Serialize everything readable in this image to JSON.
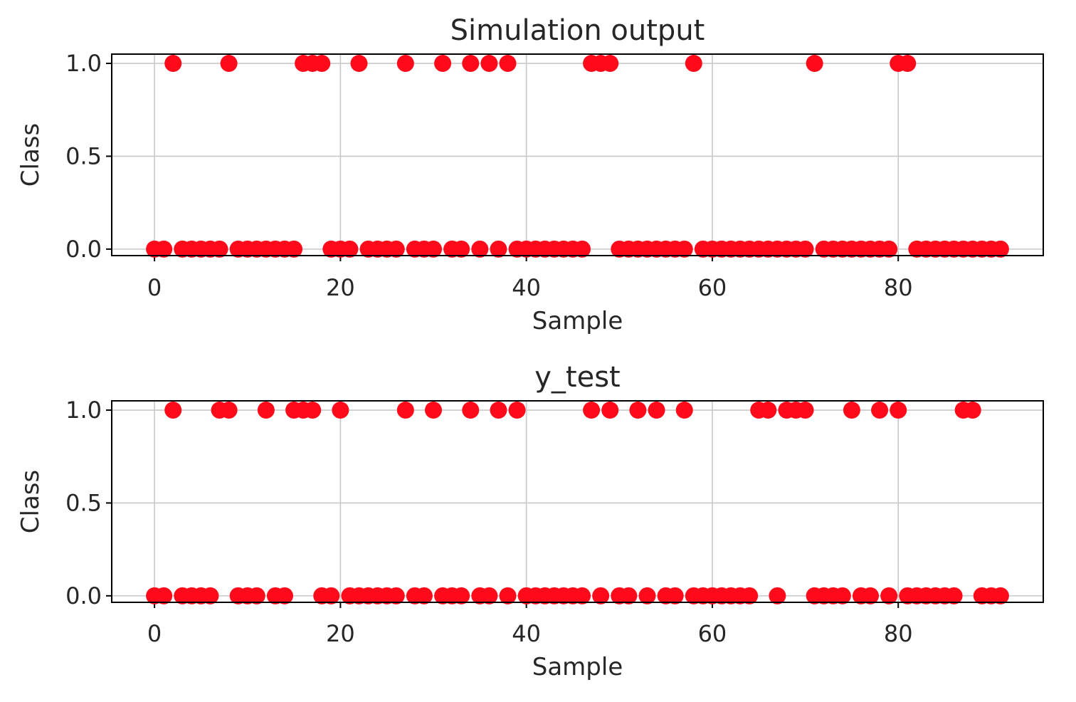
{
  "chart_data": [
    {
      "type": "scatter",
      "title": "Simulation output",
      "xlabel": "Sample",
      "ylabel": "Class",
      "xlim": [
        -4.6,
        95.6
      ],
      "ylim": [
        -0.035,
        1.05
      ],
      "xticks": [
        0,
        20,
        40,
        60,
        80
      ],
      "xtick_labels": [
        "0",
        "20",
        "40",
        "60",
        "80"
      ],
      "yticks": [
        0.0,
        0.5,
        1.0
      ],
      "ytick_labels": [
        "0.0",
        "0.5",
        "1.0"
      ],
      "grid": true,
      "marker_color": "#ff0a1a",
      "x": [
        0,
        1,
        2,
        3,
        4,
        5,
        6,
        7,
        8,
        9,
        10,
        11,
        12,
        13,
        14,
        15,
        16,
        17,
        18,
        19,
        20,
        21,
        22,
        23,
        24,
        25,
        26,
        27,
        28,
        29,
        30,
        31,
        32,
        33,
        34,
        35,
        36,
        37,
        38,
        39,
        40,
        41,
        42,
        43,
        44,
        45,
        46,
        47,
        48,
        49,
        50,
        51,
        52,
        53,
        54,
        55,
        56,
        57,
        58,
        59,
        60,
        61,
        62,
        63,
        64,
        65,
        66,
        67,
        68,
        69,
        70,
        71,
        72,
        73,
        74,
        75,
        76,
        77,
        78,
        79,
        80,
        81,
        82,
        83,
        84,
        85,
        86,
        87,
        88,
        89,
        90,
        91
      ],
      "y": [
        0,
        0,
        1,
        0,
        0,
        0,
        0,
        0,
        1,
        0,
        0,
        0,
        0,
        0,
        0,
        0,
        1,
        1,
        1,
        0,
        0,
        0,
        1,
        0,
        0,
        0,
        0,
        1,
        0,
        0,
        0,
        1,
        0,
        0,
        1,
        0,
        1,
        0,
        1,
        0,
        0,
        0,
        0,
        0,
        0,
        0,
        0,
        1,
        1,
        1,
        0,
        0,
        0,
        0,
        0,
        0,
        0,
        0,
        1,
        0,
        0,
        0,
        0,
        0,
        0,
        0,
        0,
        0,
        0,
        0,
        0,
        1,
        0,
        0,
        0,
        0,
        0,
        0,
        0,
        0,
        1,
        1,
        0,
        0,
        0,
        0,
        0,
        0,
        0,
        0,
        0,
        0
      ]
    },
    {
      "type": "scatter",
      "title": "y_test",
      "xlabel": "Sample",
      "ylabel": "Class",
      "xlim": [
        -4.6,
        95.6
      ],
      "ylim": [
        -0.035,
        1.05
      ],
      "xticks": [
        0,
        20,
        40,
        60,
        80
      ],
      "xtick_labels": [
        "0",
        "20",
        "40",
        "60",
        "80"
      ],
      "yticks": [
        0.0,
        0.5,
        1.0
      ],
      "ytick_labels": [
        "0.0",
        "0.5",
        "1.0"
      ],
      "grid": true,
      "marker_color": "#ff0a1a",
      "x": [
        0,
        1,
        2,
        3,
        4,
        5,
        6,
        7,
        8,
        9,
        10,
        11,
        12,
        13,
        14,
        15,
        16,
        17,
        18,
        19,
        20,
        21,
        22,
        23,
        24,
        25,
        26,
        27,
        28,
        29,
        30,
        31,
        32,
        33,
        34,
        35,
        36,
        37,
        38,
        39,
        40,
        41,
        42,
        43,
        44,
        45,
        46,
        47,
        48,
        49,
        50,
        51,
        52,
        53,
        54,
        55,
        56,
        57,
        58,
        59,
        60,
        61,
        62,
        63,
        64,
        65,
        66,
        67,
        68,
        69,
        70,
        71,
        72,
        73,
        74,
        75,
        76,
        77,
        78,
        79,
        80,
        81,
        82,
        83,
        84,
        85,
        86,
        87,
        88,
        89,
        90,
        91
      ],
      "y": [
        0,
        0,
        1,
        0,
        0,
        0,
        0,
        1,
        1,
        0,
        0,
        0,
        1,
        0,
        0,
        1,
        1,
        1,
        0,
        0,
        1,
        0,
        0,
        0,
        0,
        0,
        0,
        1,
        0,
        0,
        1,
        0,
        0,
        0,
        1,
        0,
        0,
        1,
        0,
        1,
        0,
        0,
        0,
        0,
        0,
        0,
        0,
        1,
        0,
        1,
        0,
        0,
        1,
        0,
        1,
        0,
        0,
        1,
        0,
        0,
        0,
        0,
        0,
        0,
        0,
        1,
        1,
        0,
        1,
        1,
        1,
        0,
        0,
        0,
        0,
        1,
        0,
        0,
        1,
        0,
        1,
        0,
        0,
        0,
        0,
        0,
        0,
        1,
        1,
        0,
        0,
        0
      ]
    }
  ]
}
